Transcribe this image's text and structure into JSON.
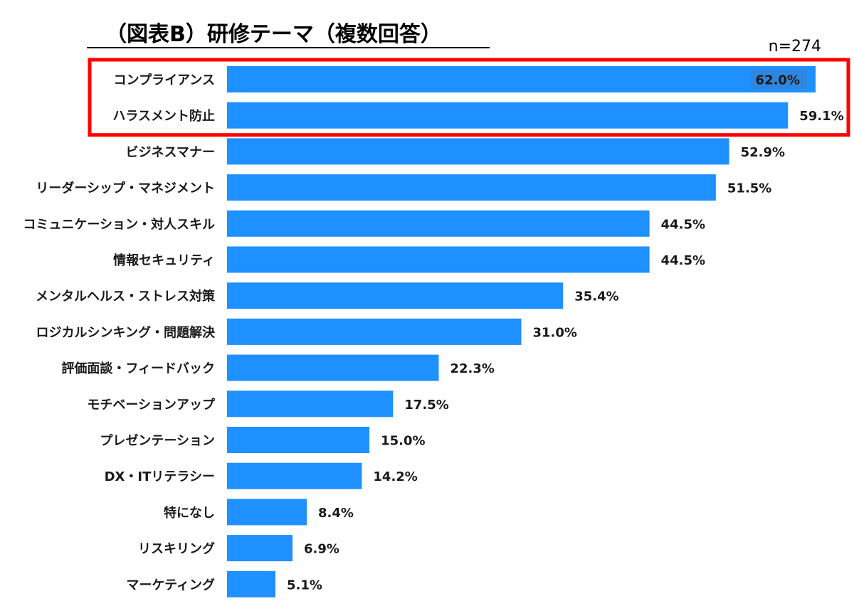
{
  "chart_data": {
    "type": "bar",
    "orientation": "horizontal",
    "title": "（図表B）研修テーマ（複数回答）",
    "sample_size_label": "n=274",
    "value_suffix": "%",
    "bar_color": "#1E90FF",
    "highlight_color": "#FF0000",
    "highlighted_categories": [
      "コンプライアンス",
      "ハラスメント防止"
    ],
    "categories": [
      "コンプライアンス",
      "ハラスメント防止",
      "ビジネスマナー",
      "リーダーシップ・マネジメント",
      "コミュニケーション・対人スキル",
      "情報セキュリティ",
      "メンタルヘルス・ストレス対策",
      "ロジカルシンキング・問題解決",
      "評価面談・フィードバック",
      "モチベーションアップ",
      "プレゼンテーション",
      "DX・ITリテラシー",
      "特になし",
      "リスキリング",
      "マーケティング"
    ],
    "values": [
      62.0,
      59.1,
      52.9,
      51.5,
      44.5,
      44.5,
      35.4,
      31.0,
      22.3,
      17.5,
      15.0,
      14.2,
      8.4,
      6.9,
      5.1
    ],
    "value_labels": [
      "62.0%",
      "59.1%",
      "52.9%",
      "51.5%",
      "44.5%",
      "44.5%",
      "35.4%",
      "31.0%",
      "22.3%",
      "17.5%",
      "15.0%",
      "14.2%",
      "8.4%",
      "6.9%",
      "5.1%"
    ]
  }
}
